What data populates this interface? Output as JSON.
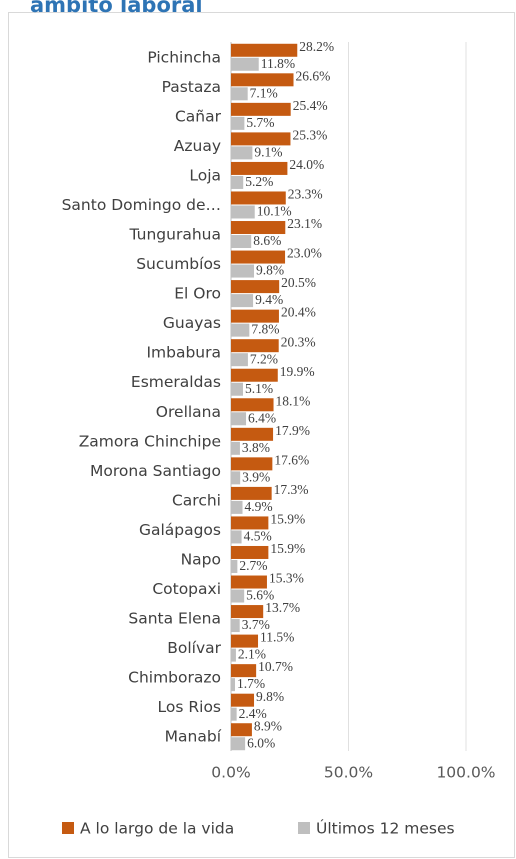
{
  "chart_data": {
    "type": "bar",
    "orientation": "horizontal",
    "title": "ámbito laboral",
    "categories": [
      "Pichincha",
      "Pastaza",
      "Cañar",
      "Azuay",
      "Loja",
      "Santo Domingo de…",
      "Tungurahua",
      "Sucumbíos",
      "El Oro",
      "Guayas",
      "Imbabura",
      "Esmeraldas",
      "Orellana",
      "Zamora Chinchipe",
      "Morona Santiago",
      "Carchi",
      "Galápagos",
      "Napo",
      "Cotopaxi",
      "Santa Elena",
      "Bolívar",
      "Chimborazo",
      "Los Rios",
      "Manabí"
    ],
    "series": [
      {
        "name": "A lo largo de la vida",
        "color": "#c55a11",
        "values": [
          28.2,
          26.6,
          25.4,
          25.3,
          24.0,
          23.3,
          23.1,
          23.0,
          20.5,
          20.4,
          20.3,
          19.9,
          18.1,
          17.9,
          17.6,
          17.3,
          15.9,
          15.9,
          15.3,
          13.7,
          11.5,
          10.7,
          9.8,
          8.9
        ],
        "value_labels": [
          "28.2%",
          "26.6%",
          "25.4%",
          "25.3%",
          "24.0%",
          "23.3%",
          "23.1%",
          "23.0%",
          "20.5%",
          "20.4%",
          "20.3%",
          "19.9%",
          "18.1%",
          "17.9%",
          "17.6%",
          "17.3%",
          "15.9%",
          "15.9%",
          "15.3%",
          "13.7%",
          "11.5%",
          "10.7%",
          "9.8%",
          "8.9%"
        ]
      },
      {
        "name": "Últimos 12 meses",
        "color": "#bfbfbf",
        "values": [
          11.8,
          7.1,
          5.7,
          9.1,
          5.2,
          10.1,
          8.6,
          9.8,
          9.4,
          7.8,
          7.2,
          5.1,
          6.4,
          3.8,
          3.9,
          4.9,
          4.5,
          2.7,
          5.6,
          3.7,
          2.1,
          1.7,
          2.4,
          6.0
        ],
        "value_labels": [
          "11.8%",
          "7.1%",
          "5.7%",
          "9.1%",
          "5.2%",
          "10.1%",
          "8.6%",
          "9.8%",
          "9.4%",
          "7.8%",
          "7.2%",
          "5.1%",
          "6.4%",
          "3.8%",
          "3.9%",
          "4.9%",
          "4.5%",
          "2.7%",
          "5.6%",
          "3.7%",
          "2.1%",
          "1.7%",
          "2.4%",
          "6.0%"
        ]
      }
    ],
    "xlim": [
      0,
      100
    ],
    "xticks": [
      {
        "value": 0,
        "label": "0.0%"
      },
      {
        "value": 50,
        "label": "50.0%"
      },
      {
        "value": 100,
        "label": "100.0%"
      }
    ],
    "grid": true,
    "legend": "bottom"
  }
}
